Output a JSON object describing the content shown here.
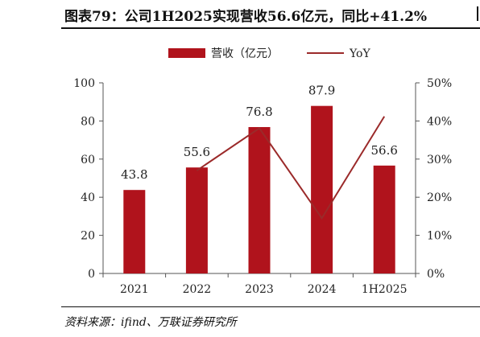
{
  "title": "图表79：公司1H2025实现营收56.6亿元，同比+41.2%",
  "source": "资料来源：ifind、万联证券研究所",
  "colors": {
    "bar": "#b0131c",
    "line": "#9b2a2a",
    "axis": "#555555",
    "text": "#222222"
  },
  "chart_data": {
    "type": "bar",
    "categories": [
      "2021",
      "2022",
      "2023",
      "2024",
      "1H2025"
    ],
    "series": [
      {
        "name": "营收（亿元）",
        "type": "bar",
        "axis": "left",
        "values": [
          43.8,
          55.6,
          76.8,
          87.9,
          56.6
        ],
        "labels": [
          "43.8",
          "55.6",
          "76.8",
          "87.9",
          "56.6"
        ]
      },
      {
        "name": "YoY",
        "type": "line",
        "axis": "right",
        "values": [
          null,
          0.27,
          0.381,
          0.145,
          0.412
        ]
      }
    ],
    "ylim_left": [
      0,
      100
    ],
    "yticks_left": [
      "0",
      "20",
      "40",
      "60",
      "80",
      "100"
    ],
    "ylim_right": [
      0,
      0.5
    ],
    "yticks_right": [
      "0%",
      "10%",
      "20%",
      "30%",
      "40%",
      "50%"
    ],
    "grid": false,
    "legend": "top-center"
  }
}
